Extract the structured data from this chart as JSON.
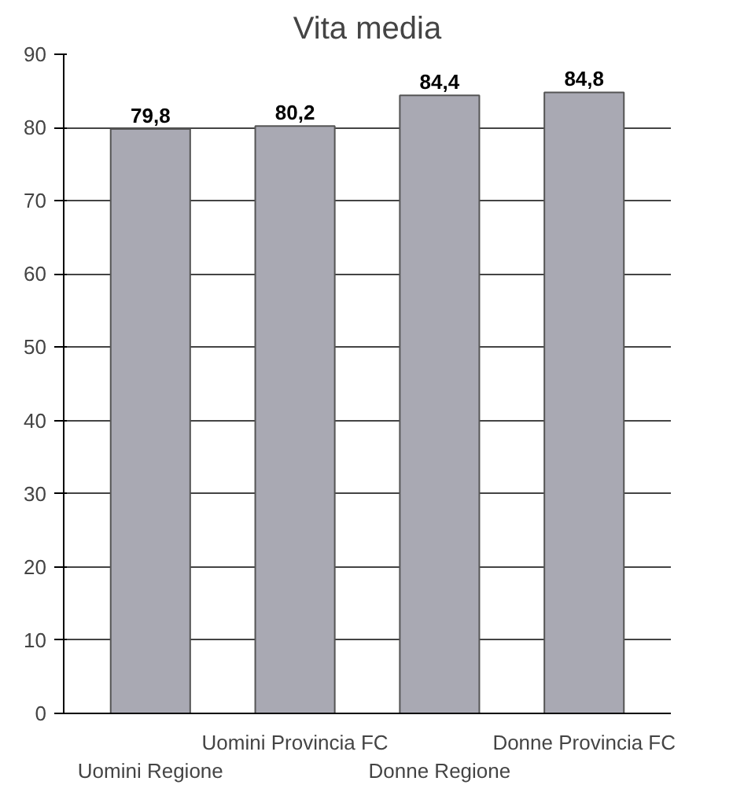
{
  "chart_data": {
    "type": "bar",
    "title": "Vita media",
    "categories": [
      "Uomini Regione",
      "Uomini Provincia FC",
      "Donne Regione",
      "Donne Provincia FC"
    ],
    "values": [
      79.8,
      80.2,
      84.4,
      84.8
    ],
    "value_labels": [
      "79,8",
      "80,2",
      "84,4",
      "84,8"
    ],
    "color": "#a9a9b3",
    "ylim": [
      0,
      90
    ],
    "yticks": [
      0,
      10,
      20,
      30,
      40,
      50,
      60,
      70,
      80,
      90
    ],
    "grid": "y"
  }
}
